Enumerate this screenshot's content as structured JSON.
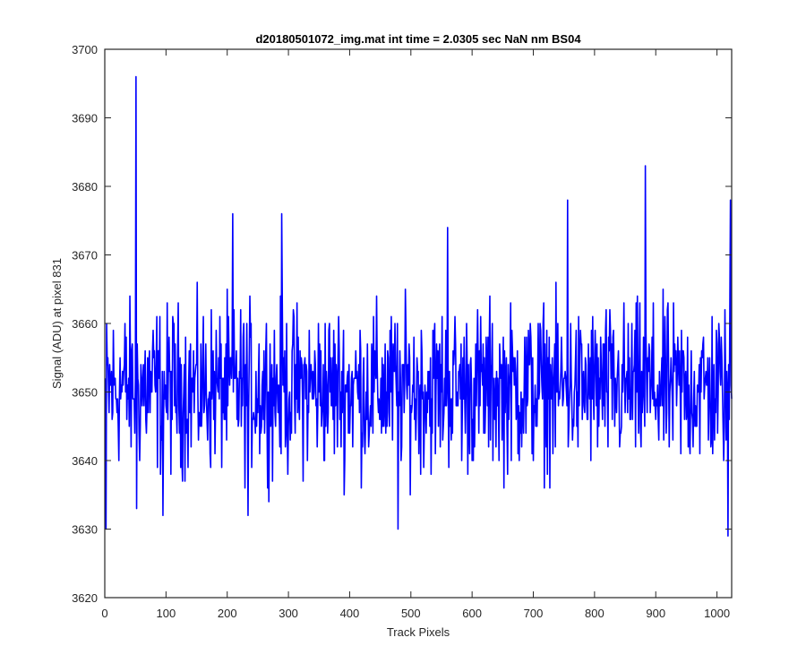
{
  "chart_data": {
    "type": "line",
    "title": "d20180501072_img.mat int time = 2.0305 sec  NaN nm BS04",
    "xlabel": "Track Pixels",
    "ylabel": "Signal (ADU) at pixel 831",
    "xlim": [
      0,
      1024
    ],
    "ylim": [
      3620,
      3700
    ],
    "x_ticks": [
      0,
      100,
      200,
      300,
      400,
      500,
      600,
      700,
      800,
      900,
      1000
    ],
    "y_ticks": [
      3620,
      3630,
      3640,
      3650,
      3660,
      3670,
      3680,
      3690,
      3700
    ],
    "grid": false,
    "legend": "none",
    "series": [
      {
        "color": "#0000ff",
        "x_start": 1,
        "x_step": 1,
        "count": 1024,
        "baseline": 3653,
        "noise_range": [
          3633,
          3668
        ],
        "peaks": [
          {
            "x": 2,
            "y": 3630
          },
          {
            "x": 51,
            "y": 3696
          },
          {
            "x": 52,
            "y": 3633
          },
          {
            "x": 95,
            "y": 3632
          },
          {
            "x": 209,
            "y": 3676
          },
          {
            "x": 234,
            "y": 3632
          },
          {
            "x": 289,
            "y": 3676
          },
          {
            "x": 479,
            "y": 3630
          },
          {
            "x": 560,
            "y": 3674
          },
          {
            "x": 756,
            "y": 3678
          },
          {
            "x": 883,
            "y": 3683
          },
          {
            "x": 1018,
            "y": 3629
          },
          {
            "x": 1022,
            "y": 3678
          }
        ]
      }
    ]
  }
}
